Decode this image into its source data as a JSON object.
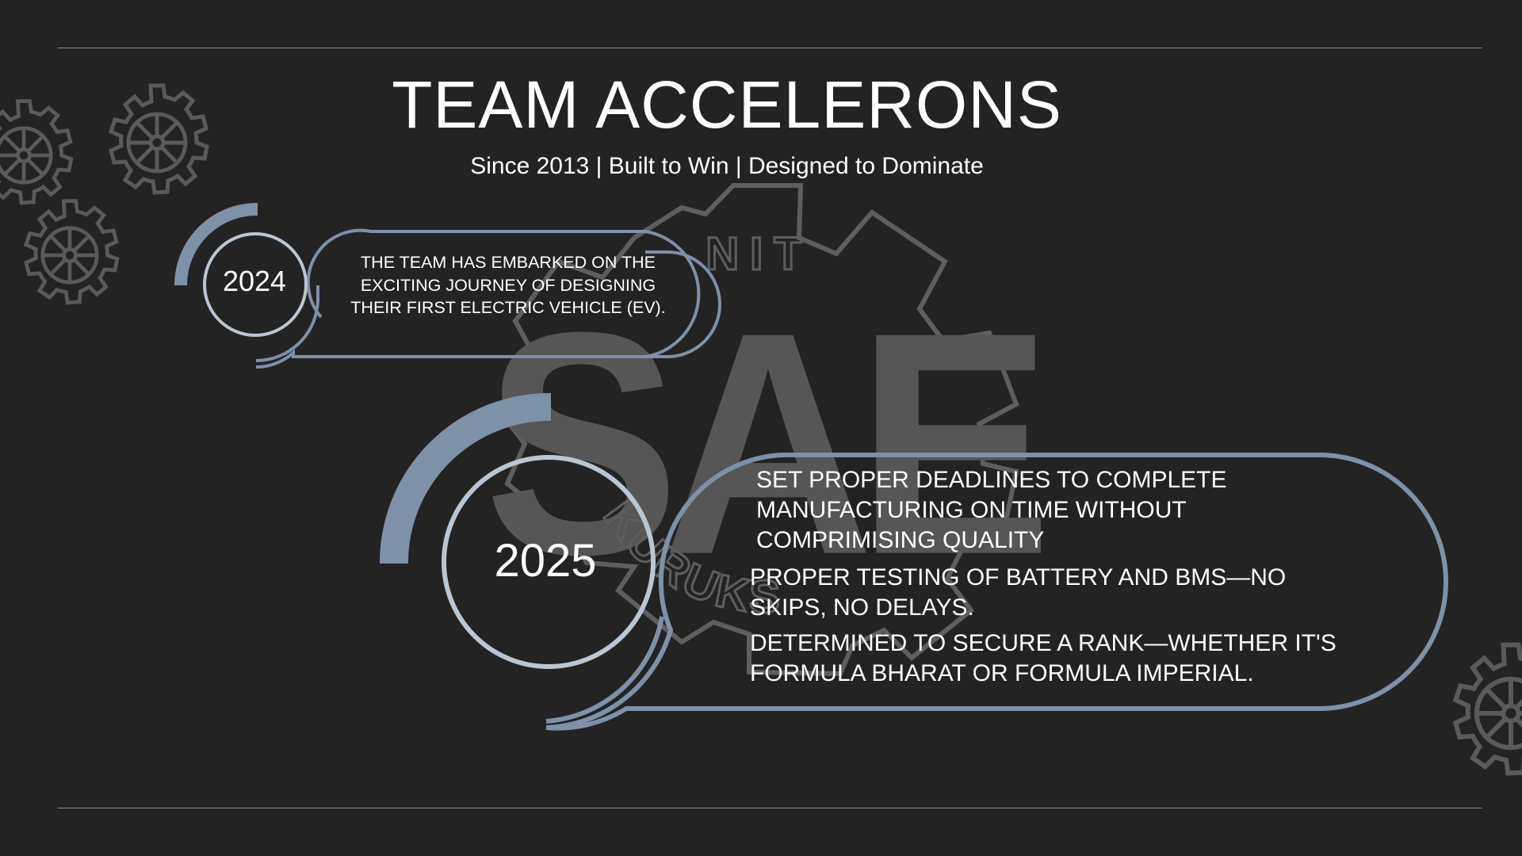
{
  "header": {
    "title": "TEAM ACCELERONS",
    "tagline": "Since 2013 | Built to Win | Designed to Dominate"
  },
  "watermark": {
    "letters": "SAE",
    "top_text": "NIT",
    "arc_text": "KURUKSHETRA"
  },
  "timeline": [
    {
      "year": "2024",
      "text": "THE TEAM HAS EMBARKED ON THE EXCITING JOURNEY OF DESIGNING THEIR FIRST ELECTRIC VEHICLE (EV)."
    },
    {
      "year": "2025",
      "goals": [
        "SET PROPER DEADLINES TO COMPLETE MANUFACTURING ON TIME WITHOUT COMPRIMISING QUALITY",
        "PROPER TESTING OF BATTERY AND BMS—NO SKIPS, NO DELAYS.",
        "DETERMINED TO SECURE A RANK—WHETHER IT'S FORMULA BHARAT OR FORMULA IMPERIAL."
      ]
    }
  ],
  "colors": {
    "background": "#232323",
    "accent_steel_blue": "#7d91a7",
    "ring_light": "#b9c6d3",
    "watermark_gray": "#595959",
    "gear_gray": "#5a5a5a",
    "rule_gray": "#8a8a8a"
  },
  "icons": [
    "gear-icon",
    "sae-logo-watermark"
  ]
}
